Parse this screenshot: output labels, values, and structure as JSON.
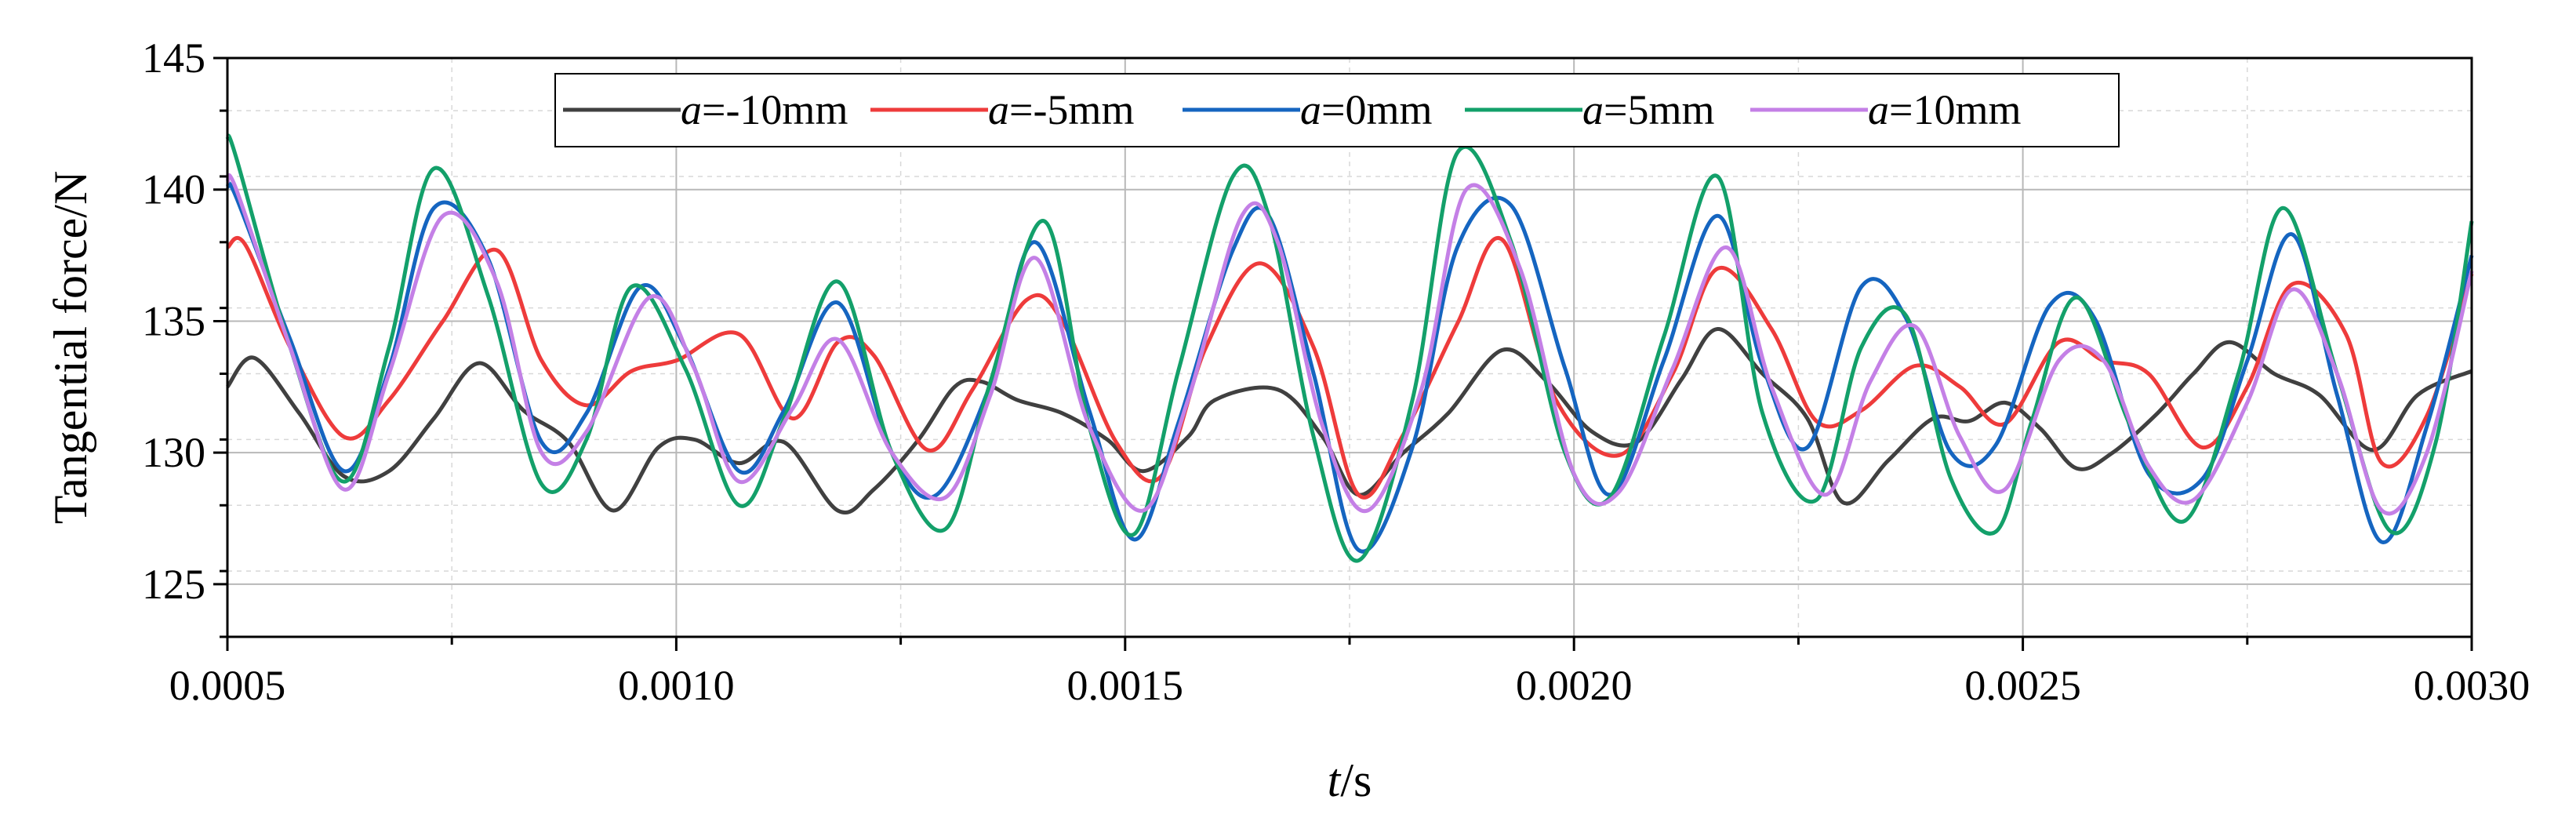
{
  "chart_data": {
    "type": "line",
    "title": "",
    "xlabel_var": "t",
    "xlabel_unit": "/s",
    "ylabel": "Tangential force/N",
    "xlim": [
      0.0005,
      0.003
    ],
    "ylim": [
      123,
      145
    ],
    "grid": true,
    "legend_position": "top-center",
    "x_ticks": [
      0.0005,
      0.001,
      0.0015,
      0.002,
      0.0025,
      0.003
    ],
    "x_tick_labels": [
      "0.0005",
      "0.0010",
      "0.0015",
      "0.0020",
      "0.0025",
      "0.0030"
    ],
    "y_ticks": [
      125,
      130,
      135,
      140,
      145
    ],
    "y_tick_labels": [
      "125",
      "130",
      "135",
      "140",
      "145"
    ],
    "series": [
      {
        "name": "a=-10mm",
        "var": "a",
        "suffix": "=-10mm",
        "color": "#404040",
        "x": [
          0.0005,
          0.00053,
          0.00058,
          0.00063,
          0.00068,
          0.00073,
          0.00078,
          0.00083,
          0.00088,
          0.00093,
          0.00098,
          0.00102,
          0.00107,
          0.00112,
          0.00118,
          0.00122,
          0.00127,
          0.00131,
          0.00134,
          0.00138,
          0.00143,
          0.00148,
          0.00152,
          0.00157,
          0.0016,
          0.00167,
          0.00172,
          0.00176,
          0.00181,
          0.00186,
          0.00192,
          0.00197,
          0.00202,
          0.00207,
          0.00212,
          0.00216,
          0.00221,
          0.00226,
          0.0023,
          0.00235,
          0.0024,
          0.00244,
          0.00248,
          0.00252,
          0.00256,
          0.0026,
          0.00265,
          0.00269,
          0.00273,
          0.00278,
          0.00283,
          0.00289,
          0.00294,
          0.003
        ],
        "values": [
          132.5,
          133.6,
          131.5,
          129.1,
          129.3,
          131.3,
          133.4,
          131.6,
          130.4,
          127.8,
          130.2,
          130.5,
          129.6,
          130.4,
          127.8,
          128.6,
          130.5,
          132.5,
          132.7,
          132.0,
          131.5,
          130.5,
          129.3,
          130.6,
          132.0,
          132.4,
          130.6,
          128.4,
          130.0,
          131.5,
          133.9,
          132.7,
          130.8,
          130.4,
          132.8,
          134.7,
          133.0,
          131.3,
          128.1,
          129.7,
          131.3,
          131.2,
          131.9,
          130.9,
          129.4,
          130.0,
          131.5,
          133.0,
          134.2,
          133.0,
          132.2,
          130.1,
          132.2,
          133.1
        ]
      },
      {
        "name": "a=-5mm",
        "var": "a",
        "suffix": "=-5mm",
        "color": "#ee3b3b",
        "x": [
          0.0005,
          0.00052,
          0.00057,
          0.00063,
          0.00068,
          0.00074,
          0.0008,
          0.00085,
          0.0009,
          0.00095,
          0.001,
          0.00107,
          0.00113,
          0.00118,
          0.00122,
          0.00128,
          0.00133,
          0.00139,
          0.00143,
          0.00149,
          0.00154,
          0.00159,
          0.00165,
          0.00171,
          0.00176,
          0.00181,
          0.00187,
          0.00192,
          0.00198,
          0.00205,
          0.00211,
          0.00216,
          0.00222,
          0.00227,
          0.00232,
          0.00238,
          0.00243,
          0.00248,
          0.00254,
          0.00259,
          0.00264,
          0.0027,
          0.00275,
          0.0028,
          0.00286,
          0.0029,
          0.00295,
          0.003
        ],
        "values": [
          137.8,
          137.9,
          134.0,
          130.6,
          132.0,
          135.0,
          137.7,
          133.5,
          131.8,
          133.1,
          133.5,
          134.5,
          131.3,
          134.2,
          133.7,
          130.1,
          132.4,
          135.8,
          135.0,
          130.4,
          129.1,
          134.0,
          137.2,
          134.0,
          128.4,
          130.7,
          134.9,
          138.1,
          132.0,
          129.9,
          133.0,
          137.0,
          134.7,
          131.2,
          131.6,
          133.3,
          132.5,
          131.1,
          134.2,
          133.5,
          133.0,
          130.2,
          132.5,
          136.4,
          134.5,
          129.6,
          131.4,
          136.8
        ]
      },
      {
        "name": "a=0mm",
        "var": "a",
        "suffix": "=0mm",
        "color": "#1565c0",
        "x": [
          0.0005,
          0.00051,
          0.00057,
          0.00063,
          0.00068,
          0.00073,
          0.00079,
          0.00085,
          0.0009,
          0.00096,
          0.00101,
          0.00107,
          0.00112,
          0.00118,
          0.00124,
          0.00129,
          0.00135,
          0.0014,
          0.00146,
          0.00151,
          0.00156,
          0.00162,
          0.00166,
          0.00171,
          0.00176,
          0.00182,
          0.00187,
          0.00193,
          0.00199,
          0.00204,
          0.0021,
          0.00216,
          0.00221,
          0.00226,
          0.00232,
          0.00237,
          0.00242,
          0.00247,
          0.00253,
          0.00258,
          0.00264,
          0.0027,
          0.00275,
          0.0028,
          0.00285,
          0.0029,
          0.00295,
          0.003
        ],
        "values": [
          140.1,
          139.7,
          134.3,
          129.3,
          133.2,
          139.3,
          137.4,
          130.4,
          131.5,
          136.3,
          134.0,
          129.3,
          131.6,
          135.7,
          130.0,
          128.4,
          132.6,
          138.0,
          131.6,
          126.7,
          131.2,
          137.7,
          139.0,
          133.0,
          126.3,
          130.2,
          137.8,
          139.4,
          133.2,
          128.4,
          133.5,
          139.0,
          133.3,
          130.2,
          136.3,
          135.1,
          130.0,
          130.3,
          135.6,
          135.1,
          129.2,
          129.0,
          133.5,
          138.3,
          132.2,
          126.6,
          131.0,
          137.5
        ]
      },
      {
        "name": "a=5mm",
        "var": "a",
        "suffix": "=5mm",
        "color": "#13a06a",
        "x": [
          0.0005,
          0.00051,
          0.00057,
          0.00063,
          0.00068,
          0.00073,
          0.00079,
          0.00085,
          0.0009,
          0.00095,
          0.00101,
          0.00107,
          0.00112,
          0.00118,
          0.00124,
          0.0013,
          0.00135,
          0.00141,
          0.00146,
          0.00151,
          0.00156,
          0.00162,
          0.00166,
          0.00171,
          0.00176,
          0.00182,
          0.00187,
          0.00193,
          0.00199,
          0.00204,
          0.0021,
          0.00216,
          0.00221,
          0.00227,
          0.00232,
          0.00237,
          0.00242,
          0.00247,
          0.00251,
          0.00256,
          0.00262,
          0.00268,
          0.00274,
          0.00279,
          0.00285,
          0.00291,
          0.00296,
          0.003
        ],
        "values": [
          142.0,
          141.2,
          134.0,
          128.9,
          134.0,
          140.8,
          136.0,
          128.8,
          130.5,
          136.3,
          133.2,
          128.0,
          131.3,
          136.5,
          130.0,
          127.1,
          132.7,
          138.8,
          131.0,
          126.9,
          133.2,
          140.5,
          139.0,
          130.6,
          125.9,
          132.0,
          141.4,
          138.0,
          130.0,
          128.3,
          134.4,
          140.5,
          131.5,
          128.2,
          134.0,
          135.2,
          129.0,
          127.0,
          131.2,
          135.9,
          131.0,
          127.4,
          133.0,
          139.3,
          133.0,
          127.0,
          130.4,
          138.8
        ]
      },
      {
        "name": "a=10mm",
        "var": "a",
        "suffix": "=10mm",
        "color": "#c480e6",
        "x": [
          0.0005,
          0.00051,
          0.00057,
          0.00063,
          0.00068,
          0.00074,
          0.0008,
          0.00085,
          0.0009,
          0.00097,
          0.00102,
          0.00107,
          0.00113,
          0.00118,
          0.00124,
          0.0013,
          0.00135,
          0.0014,
          0.00146,
          0.00152,
          0.00157,
          0.00163,
          0.00167,
          0.00172,
          0.00177,
          0.00183,
          0.00188,
          0.00194,
          0.002,
          0.00205,
          0.00211,
          0.00217,
          0.00222,
          0.00228,
          0.00233,
          0.00238,
          0.00243,
          0.00248,
          0.00254,
          0.00259,
          0.00264,
          0.00269,
          0.00275,
          0.0028,
          0.00285,
          0.0029,
          0.00295,
          0.003
        ],
        "values": [
          140.3,
          140.0,
          134.0,
          128.6,
          133.0,
          139.0,
          136.5,
          130.0,
          130.8,
          135.9,
          133.2,
          128.9,
          131.7,
          134.3,
          130.0,
          128.3,
          132.2,
          137.4,
          131.0,
          127.8,
          132.0,
          139.0,
          138.0,
          131.0,
          127.8,
          132.4,
          140.0,
          137.0,
          129.2,
          128.5,
          133.2,
          137.8,
          132.5,
          128.4,
          132.7,
          134.8,
          130.6,
          128.6,
          133.5,
          133.5,
          129.5,
          128.2,
          131.9,
          136.2,
          133.0,
          127.8,
          130.0,
          136.9
        ]
      }
    ]
  }
}
